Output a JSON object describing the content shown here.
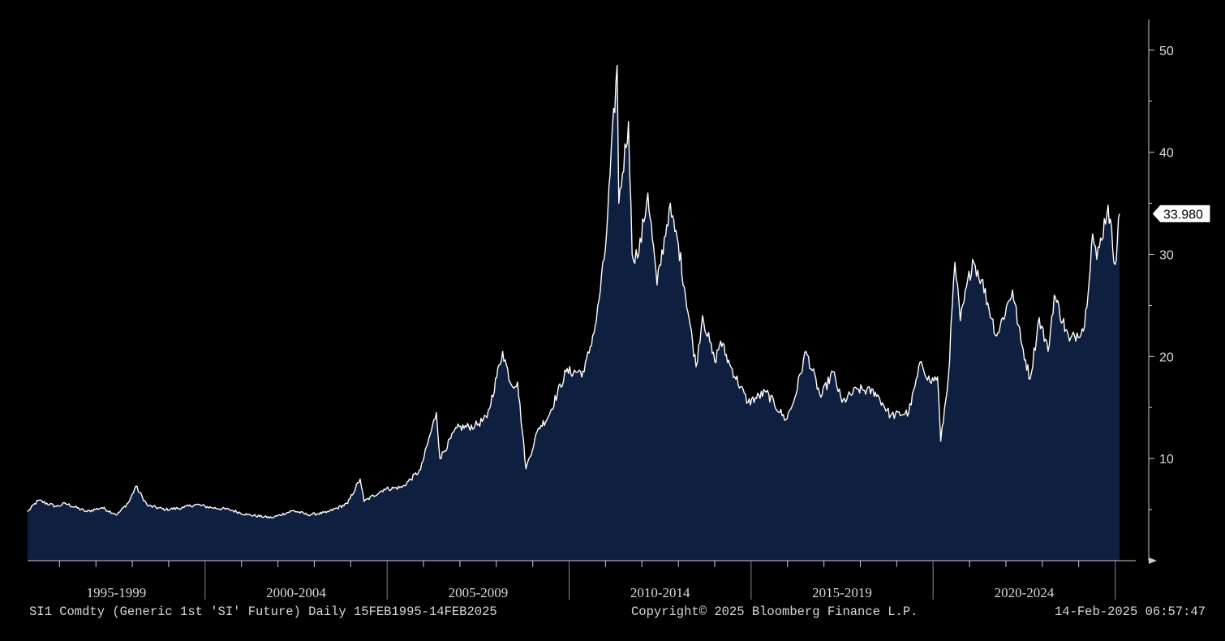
{
  "chart_data": {
    "type": "area",
    "title": "",
    "xlabel": "",
    "ylabel": "",
    "ylim": [
      0,
      53
    ],
    "xlim": [
      "1995-02-15",
      "2025-02-14"
    ],
    "y_ticks": [
      10,
      20,
      30,
      40,
      50
    ],
    "x_period_labels": [
      "1995-1999",
      "2000-2004",
      "2005-2009",
      "2010-2014",
      "2015-2019",
      "2020-2024"
    ],
    "last_value_label": "33.980",
    "grid": false,
    "colors": {
      "fill": "#0e1f40",
      "line": "#ffffff",
      "background": "#000000",
      "axis": "#cccccc"
    },
    "series": [
      {
        "values": [
          [
            "1995-02-15",
            4.8
          ],
          [
            "1995-06-01",
            5.9
          ],
          [
            "1995-12-01",
            5.3
          ],
          [
            "1996-03-01",
            5.6
          ],
          [
            "1996-10-01",
            4.8
          ],
          [
            "1997-03-01",
            5.2
          ],
          [
            "1997-08-01",
            4.5
          ],
          [
            "1997-12-01",
            5.8
          ],
          [
            "1998-02-05",
            7.3
          ],
          [
            "1998-06-01",
            5.4
          ],
          [
            "1998-12-01",
            5.0
          ],
          [
            "1999-06-01",
            5.2
          ],
          [
            "1999-10-01",
            5.5
          ],
          [
            "2000-03-01",
            5.2
          ],
          [
            "2000-09-01",
            5.0
          ],
          [
            "2001-03-01",
            4.5
          ],
          [
            "2001-11-01",
            4.2
          ],
          [
            "2002-06-01",
            4.9
          ],
          [
            "2002-11-01",
            4.5
          ],
          [
            "2003-05-01",
            4.7
          ],
          [
            "2003-12-01",
            5.6
          ],
          [
            "2004-04-05",
            8.0
          ],
          [
            "2004-05-15",
            5.8
          ],
          [
            "2004-12-01",
            7.0
          ],
          [
            "2005-06-01",
            7.2
          ],
          [
            "2005-12-01",
            8.9
          ],
          [
            "2006-05-10",
            14.5
          ],
          [
            "2006-06-15",
            10.0
          ],
          [
            "2006-12-01",
            13.0
          ],
          [
            "2007-06-01",
            13.2
          ],
          [
            "2007-10-01",
            14.0
          ],
          [
            "2008-03-05",
            20.5
          ],
          [
            "2008-06-01",
            17.2
          ],
          [
            "2008-08-01",
            17.5
          ],
          [
            "2008-10-25",
            9.0
          ],
          [
            "2009-03-01",
            13.0
          ],
          [
            "2009-06-01",
            14.0
          ],
          [
            "2009-12-01",
            18.5
          ],
          [
            "2010-06-01",
            18.5
          ],
          [
            "2010-10-01",
            23.5
          ],
          [
            "2010-12-31",
            30.5
          ],
          [
            "2011-04-28",
            48.5
          ],
          [
            "2011-05-15",
            35.0
          ],
          [
            "2011-08-20",
            43.0
          ],
          [
            "2011-09-25",
            30.0
          ],
          [
            "2011-12-01",
            30.0
          ],
          [
            "2012-03-01",
            36.0
          ],
          [
            "2012-06-01",
            27.0
          ],
          [
            "2012-10-01",
            34.5
          ],
          [
            "2013-01-01",
            31.0
          ],
          [
            "2013-06-28",
            19.0
          ],
          [
            "2013-09-01",
            24.0
          ],
          [
            "2014-01-01",
            19.5
          ],
          [
            "2014-03-01",
            21.5
          ],
          [
            "2014-06-01",
            19.2
          ],
          [
            "2014-12-01",
            15.5
          ],
          [
            "2015-06-01",
            16.5
          ],
          [
            "2015-12-15",
            13.8
          ],
          [
            "2016-03-01",
            15.5
          ],
          [
            "2016-07-05",
            20.5
          ],
          [
            "2016-12-01",
            16.0
          ],
          [
            "2017-04-01",
            18.5
          ],
          [
            "2017-07-01",
            15.5
          ],
          [
            "2017-12-01",
            16.8
          ],
          [
            "2018-06-01",
            16.5
          ],
          [
            "2018-11-01",
            14.2
          ],
          [
            "2019-05-01",
            14.5
          ],
          [
            "2019-09-04",
            19.5
          ],
          [
            "2019-12-01",
            17.5
          ],
          [
            "2020-02-15",
            18.0
          ],
          [
            "2020-03-18",
            11.7
          ],
          [
            "2020-06-01",
            17.8
          ],
          [
            "2020-08-07",
            29.2
          ],
          [
            "2020-09-30",
            23.5
          ],
          [
            "2021-02-01",
            29.5
          ],
          [
            "2021-05-01",
            27.5
          ],
          [
            "2021-09-30",
            22.0
          ],
          [
            "2022-03-08",
            26.5
          ],
          [
            "2022-06-01",
            21.5
          ],
          [
            "2022-09-01",
            17.8
          ],
          [
            "2022-12-01",
            23.8
          ],
          [
            "2023-02-28",
            20.5
          ],
          [
            "2023-05-01",
            26.0
          ],
          [
            "2023-10-01",
            21.5
          ],
          [
            "2024-03-01",
            23.0
          ],
          [
            "2024-05-20",
            32.0
          ],
          [
            "2024-07-01",
            29.5
          ],
          [
            "2024-10-22",
            34.8
          ],
          [
            "2024-12-31",
            29.0
          ],
          [
            "2025-02-14",
            33.98
          ]
        ]
      }
    ]
  },
  "footer": {
    "left": "SI1 Comdty (Generic 1st 'SI' Future)  Daily 15FEB1995-14FEB2025",
    "middle": "Copyright© 2025 Bloomberg Finance L.P.",
    "right": "14-Feb-2025 06:57:47"
  }
}
